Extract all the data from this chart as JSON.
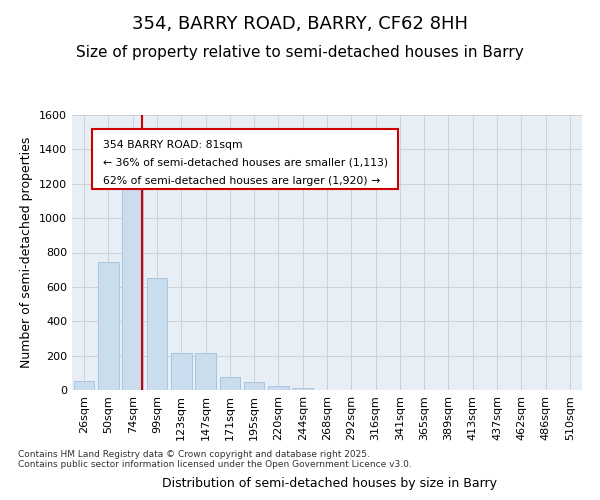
{
  "title": "354, BARRY ROAD, BARRY, CF62 8HH",
  "subtitle": "Size of property relative to semi-detached houses in Barry",
  "xlabel": "Distribution of semi-detached houses by size in Barry",
  "ylabel": "Number of semi-detached properties",
  "categories": [
    "26sqm",
    "50sqm",
    "74sqm",
    "99sqm",
    "123sqm",
    "147sqm",
    "171sqm",
    "195sqm",
    "220sqm",
    "244sqm",
    "268sqm",
    "292sqm",
    "316sqm",
    "341sqm",
    "365sqm",
    "389sqm",
    "413sqm",
    "437sqm",
    "462sqm",
    "486sqm",
    "510sqm"
  ],
  "values": [
    55,
    745,
    1280,
    650,
    215,
    215,
    75,
    45,
    25,
    10,
    0,
    0,
    0,
    0,
    0,
    0,
    0,
    0,
    0,
    0,
    0
  ],
  "bar_color": "#c9ddef",
  "bar_edge_color": "#9ab8d4",
  "grid_color": "#cccccc",
  "bg_color": "#e8eef5",
  "vline_pos": 2.4,
  "vline_color": "#cc0000",
  "anno_line1": "354 BARRY ROAD: 81sqm",
  "anno_line2": "← 36% of semi-detached houses are smaller (1,113)",
  "anno_line3": "62% of semi-detached houses are larger (1,920) →",
  "anno_box_color": "#cc0000",
  "footer": "Contains HM Land Registry data © Crown copyright and database right 2025.\nContains public sector information licensed under the Open Government Licence v3.0.",
  "ylim": [
    0,
    1600
  ],
  "yticks": [
    0,
    200,
    400,
    600,
    800,
    1000,
    1200,
    1400,
    1600
  ],
  "title_fontsize": 13,
  "subtitle_fontsize": 11,
  "axis_label_fontsize": 9,
  "tick_fontsize": 8,
  "footer_fontsize": 6.5
}
